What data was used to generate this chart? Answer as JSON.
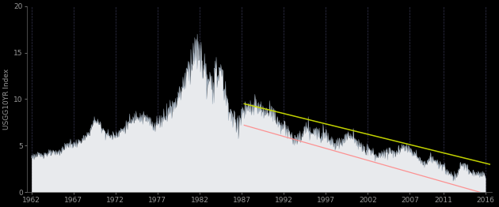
{
  "ylabel": "USGG10YR Index",
  "background_color": "#000000",
  "plot_bg_color": "#000000",
  "fill_color": "#e8eaed",
  "fill_edge_color": "#aabbcc",
  "grid_color": "#444466",
  "tick_label_color": "#999999",
  "axis_label_color": "#999999",
  "spine_color": "#666666",
  "ylim": [
    0,
    20
  ],
  "yticks": [
    0,
    5,
    10,
    15,
    20
  ],
  "xlim": [
    1961.5,
    2016.8
  ],
  "xticks": [
    1962,
    1967,
    1972,
    1977,
    1982,
    1987,
    1992,
    1997,
    2002,
    2007,
    2011,
    2016
  ],
  "red_line": {
    "x0": 1987.3,
    "y0": 7.2,
    "x1": 2016.5,
    "y1": -0.3
  },
  "yellow_line": {
    "x0": 1987.3,
    "y0": 9.5,
    "x1": 2016.5,
    "y1": 3.0
  },
  "data_years": [
    1962.0,
    1962.5,
    1963.0,
    1963.5,
    1964.0,
    1964.5,
    1965.0,
    1965.5,
    1966.0,
    1966.5,
    1967.0,
    1967.5,
    1968.0,
    1968.5,
    1969.0,
    1969.5,
    1970.0,
    1970.5,
    1971.0,
    1971.5,
    1972.0,
    1972.5,
    1973.0,
    1973.5,
    1974.0,
    1974.5,
    1975.0,
    1975.5,
    1976.0,
    1976.5,
    1977.0,
    1977.5,
    1978.0,
    1978.5,
    1979.0,
    1979.5,
    1980.0,
    1980.5,
    1981.0,
    1981.5,
    1982.0,
    1982.5,
    1983.0,
    1983.5,
    1984.0,
    1984.5,
    1985.0,
    1985.5,
    1986.0,
    1986.5,
    1987.0,
    1987.5,
    1988.0,
    1988.5,
    1989.0,
    1989.5,
    1990.0,
    1990.5,
    1991.0,
    1991.5,
    1992.0,
    1992.5,
    1993.0,
    1993.5,
    1994.0,
    1994.5,
    1995.0,
    1995.5,
    1996.0,
    1996.5,
    1997.0,
    1997.5,
    1998.0,
    1998.5,
    1999.0,
    1999.5,
    2000.0,
    2000.5,
    2001.0,
    2001.5,
    2002.0,
    2002.5,
    2003.0,
    2003.5,
    2004.0,
    2004.5,
    2005.0,
    2005.5,
    2006.0,
    2006.5,
    2007.0,
    2007.5,
    2008.0,
    2008.5,
    2009.0,
    2009.5,
    2010.0,
    2010.5,
    2011.0,
    2011.5,
    2012.0,
    2012.5,
    2013.0,
    2013.5,
    2014.0,
    2014.5,
    2015.0,
    2015.5,
    2016.0
  ],
  "data_values": [
    3.85,
    3.9,
    4.0,
    4.1,
    4.15,
    4.2,
    4.25,
    4.4,
    4.9,
    5.2,
    5.1,
    5.3,
    5.6,
    5.9,
    6.7,
    7.8,
    7.4,
    6.8,
    6.2,
    6.0,
    6.2,
    6.5,
    6.8,
    7.4,
    7.6,
    8.4,
    8.0,
    8.0,
    7.6,
    7.2,
    7.4,
    7.9,
    8.4,
    9.0,
    9.4,
    10.5,
    11.4,
    13.0,
    13.9,
    15.3,
    14.6,
    13.5,
    11.1,
    11.8,
    12.5,
    13.2,
    10.6,
    9.0,
    7.7,
    7.2,
    8.4,
    8.9,
    8.8,
    9.2,
    9.1,
    8.5,
    8.6,
    9.0,
    7.9,
    7.3,
    7.0,
    6.4,
    5.9,
    5.5,
    5.8,
    6.8,
    6.6,
    6.3,
    6.4,
    6.4,
    6.4,
    5.6,
    5.3,
    5.1,
    5.6,
    6.0,
    6.0,
    5.8,
    5.0,
    4.6,
    4.6,
    4.2,
    4.0,
    3.9,
    4.3,
    4.5,
    4.3,
    4.4,
    4.7,
    5.0,
    4.6,
    4.2,
    3.7,
    3.0,
    3.3,
    3.8,
    3.2,
    3.0,
    2.8,
    2.0,
    1.8,
    1.6,
    2.9,
    3.0,
    2.2,
    2.0,
    2.1,
    1.9,
    1.8
  ]
}
